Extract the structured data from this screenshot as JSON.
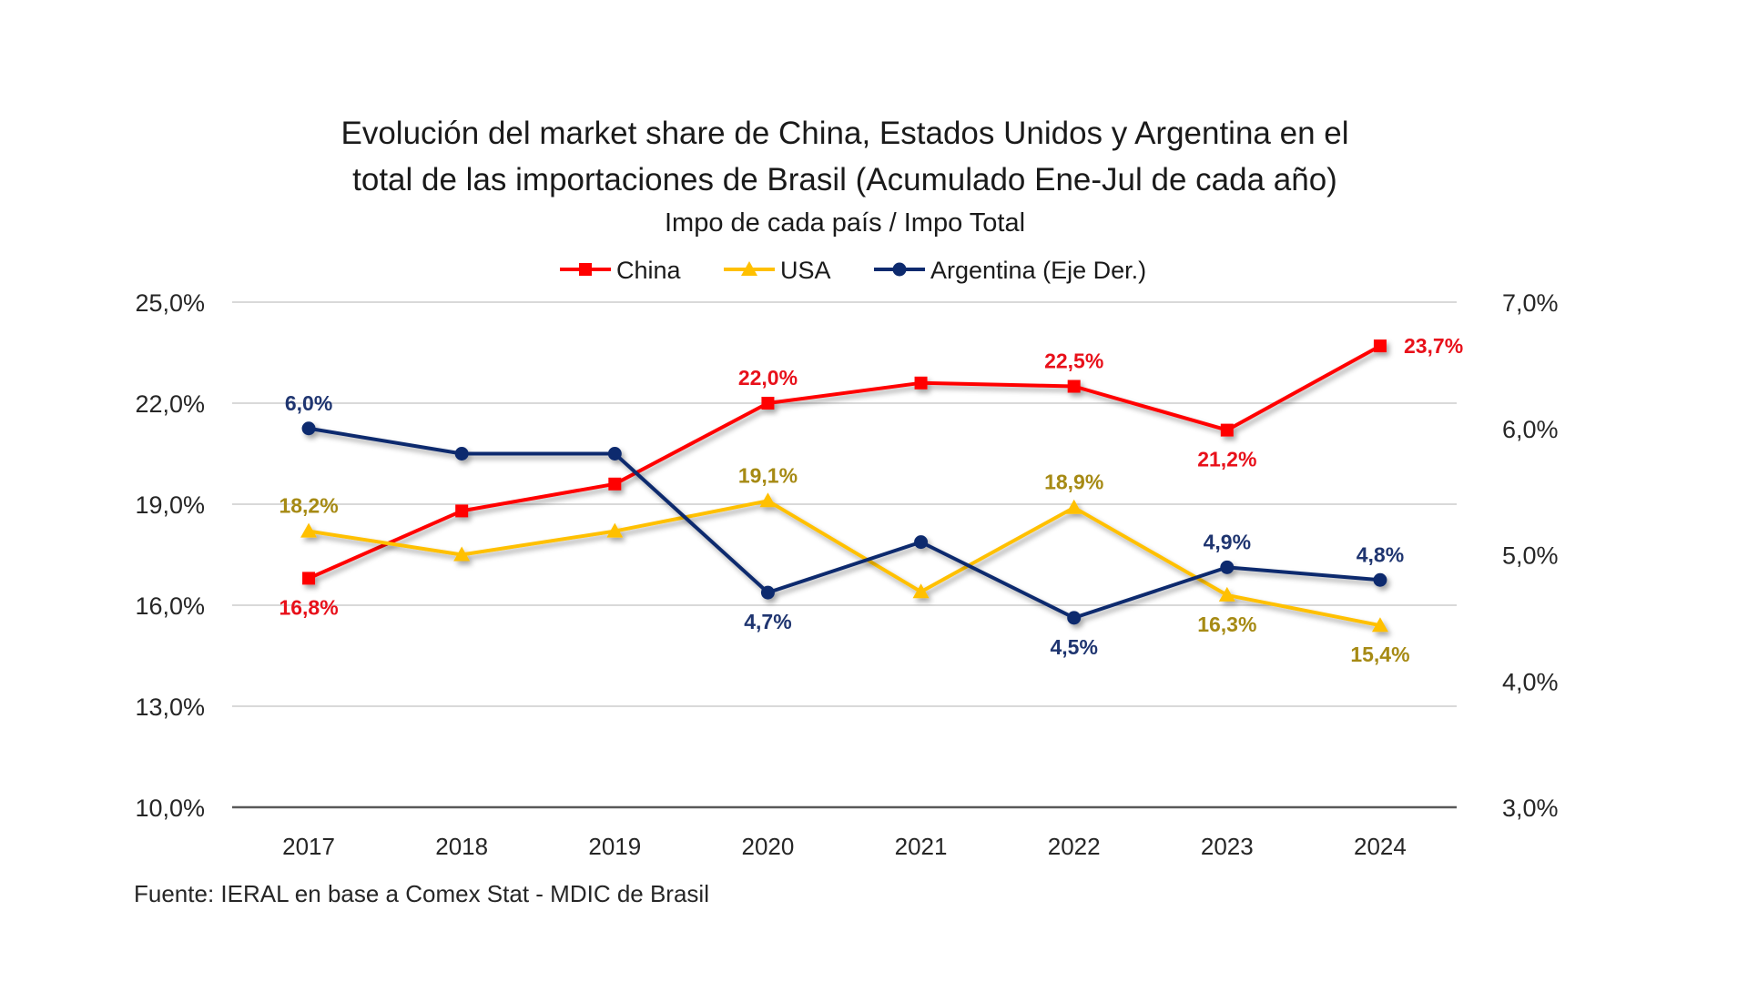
{
  "chart_data": {
    "type": "line",
    "title_lines": [
      "Evolución del market share de China, Estados Unidos y Argentina en el",
      "total de las importaciones de Brasil (Acumulado Ene-Jul de cada año)"
    ],
    "subtitle": "Impo de cada país / Impo Total",
    "source": "Fuente: IERAL en base a Comex Stat - MDIC de Brasil",
    "categories": [
      "2017",
      "2018",
      "2019",
      "2020",
      "2021",
      "2022",
      "2023",
      "2024"
    ],
    "left_axis": {
      "ylim": [
        10,
        25
      ],
      "ticks": [
        25,
        22,
        19,
        16,
        13,
        10
      ],
      "tick_labels": [
        "25,0%",
        "22,0%",
        "19,0%",
        "16,0%",
        "13,0%",
        "10,0%"
      ]
    },
    "right_axis": {
      "ylim": [
        3,
        7
      ],
      "ticks": [
        7,
        6,
        5,
        4,
        3
      ],
      "tick_labels": [
        "7,0%",
        "6,0%",
        "5,0%",
        "4,0%",
        "3,0%"
      ]
    },
    "grid": true,
    "legend_position": "top-center",
    "series": [
      {
        "name": "China",
        "axis": "left",
        "color": "#ff0000",
        "label_color": "#e8101a",
        "marker": "square",
        "values": [
          16.8,
          18.8,
          19.6,
          22.0,
          22.6,
          22.5,
          21.2,
          23.7
        ],
        "labels": [
          "16,8%",
          null,
          null,
          "22,0%",
          null,
          "22,5%",
          "21,2%",
          "23,7%"
        ],
        "label_pos": [
          "below",
          null,
          null,
          "above",
          null,
          "above",
          "below",
          "right"
        ]
      },
      {
        "name": "USA",
        "axis": "left",
        "color": "#ffc000",
        "label_color": "#a68a14",
        "marker": "triangle",
        "values": [
          18.2,
          17.5,
          18.2,
          19.1,
          16.4,
          18.9,
          16.3,
          15.4
        ],
        "labels": [
          "18,2%",
          null,
          null,
          "19,1%",
          null,
          "18,9%",
          "16,3%",
          "15,4%"
        ],
        "label_pos": [
          "above",
          null,
          null,
          "above",
          null,
          "above",
          "below",
          "below"
        ]
      },
      {
        "name": "Argentina (Eje Der.)",
        "axis": "right",
        "color": "#0d2a6e",
        "label_color": "#1f3570",
        "marker": "circle",
        "values": [
          6.0,
          5.8,
          5.8,
          4.7,
          5.1,
          4.5,
          4.9,
          4.8
        ],
        "labels": [
          "6,0%",
          null,
          null,
          "4,7%",
          null,
          "4,5%",
          "4,9%",
          "4,8%"
        ],
        "label_pos": [
          "above",
          null,
          null,
          "below",
          null,
          "below",
          "above",
          "above"
        ]
      }
    ]
  }
}
